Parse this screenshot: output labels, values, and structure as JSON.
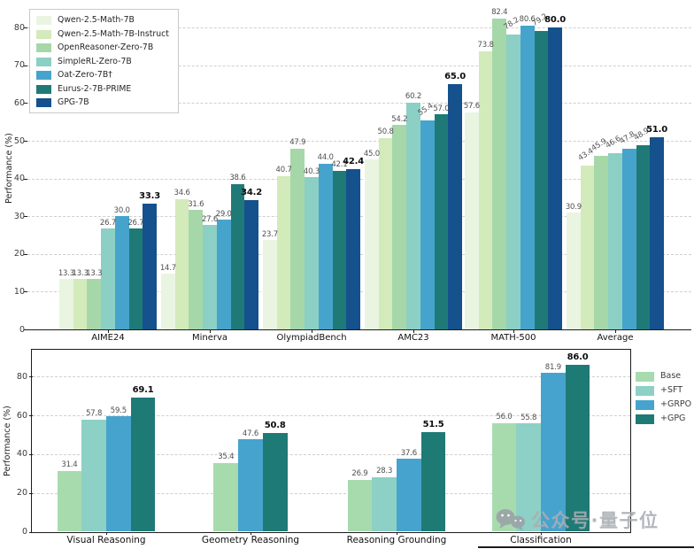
{
  "watermark": {
    "text": "公众号·量子位"
  },
  "chart_data": [
    {
      "id": "math-benchmarks",
      "type": "bar",
      "title": "",
      "xlabel": "",
      "ylabel": "Performance (%)",
      "ylim": [
        0,
        85
      ],
      "yticks": [
        0,
        10,
        20,
        30,
        40,
        50,
        60,
        70,
        80
      ],
      "grid": "dashed-horizontal",
      "legend_position": "upper-left",
      "categories": [
        "AIME24",
        "Minerva",
        "OlympiadBench",
        "AMC23",
        "MATH-500",
        "Average"
      ],
      "series": [
        {
          "name": "Qwen-2.5-Math-7B",
          "color": "#e9f5e1",
          "values": [
            13.3,
            14.7,
            23.7,
            45.0,
            57.6,
            30.9
          ]
        },
        {
          "name": "Qwen-2.5-Math-7B-Instruct",
          "color": "#d3eaba",
          "values": [
            13.3,
            34.6,
            40.7,
            50.8,
            73.8,
            43.4
          ]
        },
        {
          "name": "OpenReasoner-Zero-7B",
          "color": "#a6d7a9",
          "values": [
            13.3,
            31.6,
            47.9,
            54.2,
            82.4,
            45.9
          ]
        },
        {
          "name": "SimpleRL-Zero-7B",
          "color": "#8ccfc4",
          "values": [
            26.7,
            27.6,
            40.3,
            60.2,
            78.2,
            46.6
          ]
        },
        {
          "name": "Oat-Zero-7B†",
          "color": "#46a4cc",
          "values": [
            30.0,
            29.0,
            44.0,
            55.4,
            80.6,
            47.8
          ]
        },
        {
          "name": "Eurus-2-7B-PRIME",
          "color": "#1f7a77",
          "values": [
            26.7,
            38.6,
            42.1,
            57.0,
            79.2,
            48.9
          ]
        },
        {
          "name": "GPG-7B",
          "color": "#14518d",
          "values": [
            33.3,
            34.2,
            42.4,
            65.0,
            80.0,
            51.0
          ],
          "bold_labels": true
        }
      ],
      "rotated_value_labels": [
        [
          3,
          4
        ],
        [
          4,
          3
        ],
        [
          4,
          5
        ],
        [
          5,
          1
        ],
        [
          5,
          2
        ],
        [
          5,
          3
        ],
        [
          5,
          4
        ],
        [
          5,
          5
        ]
      ]
    },
    {
      "id": "multimodal-tasks",
      "type": "bar",
      "title": "",
      "xlabel": "",
      "ylabel": "Performance (%)",
      "ylim": [
        0,
        95
      ],
      "yticks": [
        0,
        20,
        40,
        60,
        80
      ],
      "grid": "dashed-horizontal",
      "legend_position": "right-outside",
      "categories": [
        "Visual Reasoning",
        "Geometry Reasoning",
        "Reasoning Grounding",
        "Classification"
      ],
      "series": [
        {
          "name": "Base",
          "color": "#a7dbae",
          "values": [
            31.4,
            35.4,
            26.9,
            56.0
          ]
        },
        {
          "name": "+SFT",
          "color": "#8dd0c5",
          "values": [
            57.8,
            null,
            28.3,
            55.8
          ]
        },
        {
          "name": "+GRPO",
          "color": "#46a3cd",
          "values": [
            59.5,
            47.6,
            37.6,
            81.9
          ]
        },
        {
          "name": "+GPG",
          "color": "#1e7a75",
          "values": [
            69.1,
            50.8,
            51.5,
            86.0
          ],
          "bold_labels": true
        }
      ],
      "rotated_value_labels": []
    }
  ]
}
